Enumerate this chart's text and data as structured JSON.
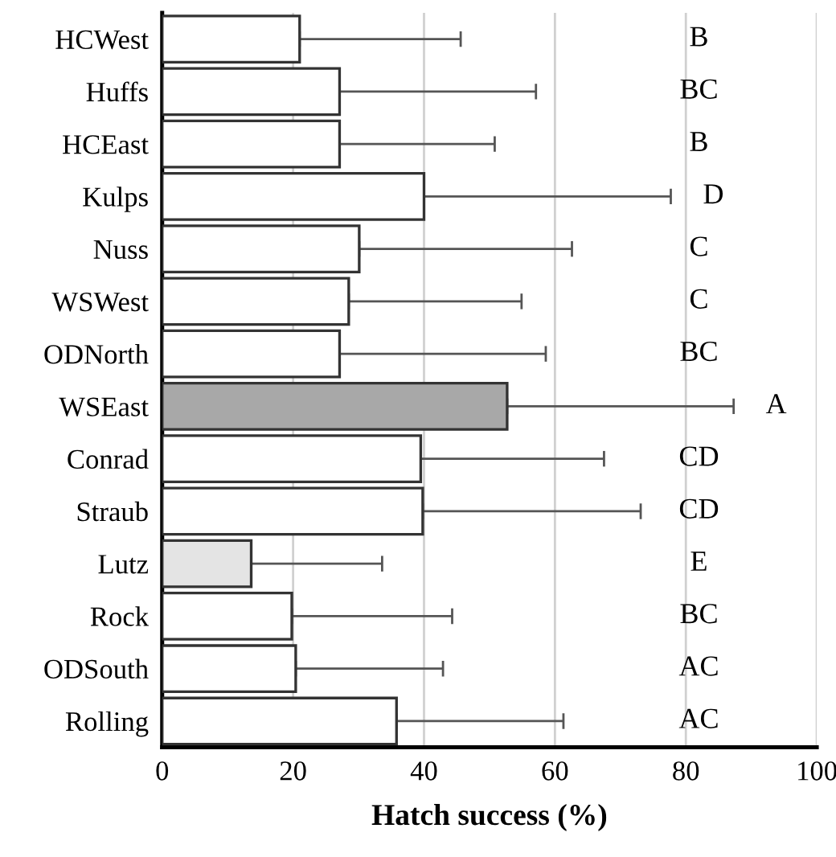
{
  "chart_data": {
    "type": "bar",
    "orientation": "horizontal",
    "xlabel": "Hatch success (%)",
    "categories": [
      "HCWest",
      "Huffs",
      "HCEast",
      "Kulps",
      "Nuss",
      "WSWest",
      "ODNorth",
      "WSEast",
      "Conrad",
      "Straub",
      "Lutz",
      "Rock",
      "ODSouth",
      "Rolling"
    ],
    "values": [
      21.0,
      27.1,
      27.1,
      40.0,
      30.1,
      28.5,
      27.1,
      52.7,
      39.5,
      39.8,
      13.6,
      19.8,
      20.4,
      35.8
    ],
    "errors": [
      [
        21.0,
        45.6
      ],
      [
        27.1,
        57.1
      ],
      [
        27.1,
        50.8
      ],
      [
        40.0,
        77.7
      ],
      [
        30.1,
        62.6
      ],
      [
        28.5,
        54.9
      ],
      [
        27.1,
        58.6
      ],
      [
        52.7,
        87.3
      ],
      [
        39.5,
        67.5
      ],
      [
        39.8,
        73.1
      ],
      [
        13.6,
        33.6
      ],
      [
        19.8,
        44.3
      ],
      [
        20.4,
        42.9
      ],
      [
        35.8,
        61.3
      ]
    ],
    "colors": [
      "#ffffff",
      "#ffffff",
      "#ffffff",
      "#ffffff",
      "#ffffff",
      "#ffffff",
      "#ffffff",
      "#a8a8a8",
      "#ffffff",
      "#ffffff",
      "#e4e4e4",
      "#ffffff",
      "#ffffff",
      "#ffffff"
    ],
    "xlim": [
      0,
      100
    ],
    "xticks": [
      0,
      20,
      40,
      60,
      80,
      100
    ],
    "grid": "x",
    "annotations": [
      "B",
      "BC",
      "B",
      "D",
      "C",
      "C",
      "BC",
      "A",
      "CD",
      "CD",
      "E",
      "BC",
      "AC",
      "AC"
    ]
  }
}
